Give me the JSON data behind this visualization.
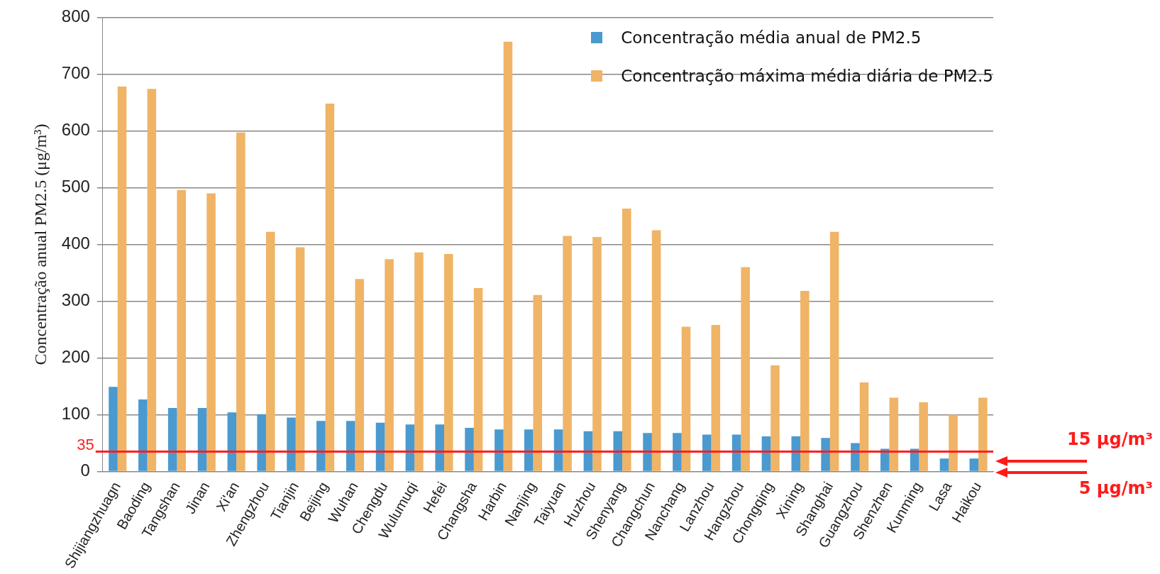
{
  "chart_data": {
    "type": "bar",
    "ylabel": "Concentração anual PM2.5 (μg/m³)",
    "categories": [
      "Shijiangzhuagn",
      "Baoding",
      "Tangshan",
      "Jinan",
      "Xi'an",
      "Zhengzhou",
      "Tianjin",
      "Beijing",
      "Wuhan",
      "Chengdu",
      "Wulumuqi",
      "Hefei",
      "Changsha",
      "Harbin",
      "Nanjing",
      "Taiyuan",
      "Huzhou",
      "Shenyang",
      "Changchun",
      "Nanchang",
      "Lanzhou",
      "Hangzhou",
      "Chongqing",
      "Xining",
      "Shanghai",
      "Guangzhou",
      "Shenzhen",
      "Kunming",
      "Lasa",
      "Haikou"
    ],
    "series": [
      {
        "name": "Concentração média anual de PM2.5",
        "color": "#4a9ad0",
        "values": [
          149,
          127,
          112,
          112,
          104,
          101,
          95,
          89,
          89,
          86,
          83,
          83,
          77,
          74,
          74,
          74,
          71,
          71,
          68,
          68,
          65,
          65,
          62,
          62,
          59,
          50,
          40,
          40,
          23,
          23
        ]
      },
      {
        "name": "Concentração máxima média diária de PM2.5",
        "color": "#f0b466",
        "values": [
          678,
          674,
          496,
          490,
          597,
          422,
          395,
          648,
          339,
          374,
          386,
          383,
          323,
          757,
          311,
          415,
          413,
          463,
          425,
          255,
          258,
          360,
          187,
          318,
          422,
          157,
          130,
          122,
          100,
          130
        ]
      }
    ],
    "ylim": [
      0,
      800
    ],
    "yticks": [
      0,
      100,
      200,
      300,
      400,
      500,
      600,
      700,
      800
    ],
    "grid": "y",
    "legend": "top right",
    "ref_lines": [
      {
        "axis": "y",
        "value": 35,
        "label": "35",
        "color": "#ff2020"
      }
    ],
    "annotations": [
      "15 μg/m³",
      "5 μg/m³"
    ]
  }
}
